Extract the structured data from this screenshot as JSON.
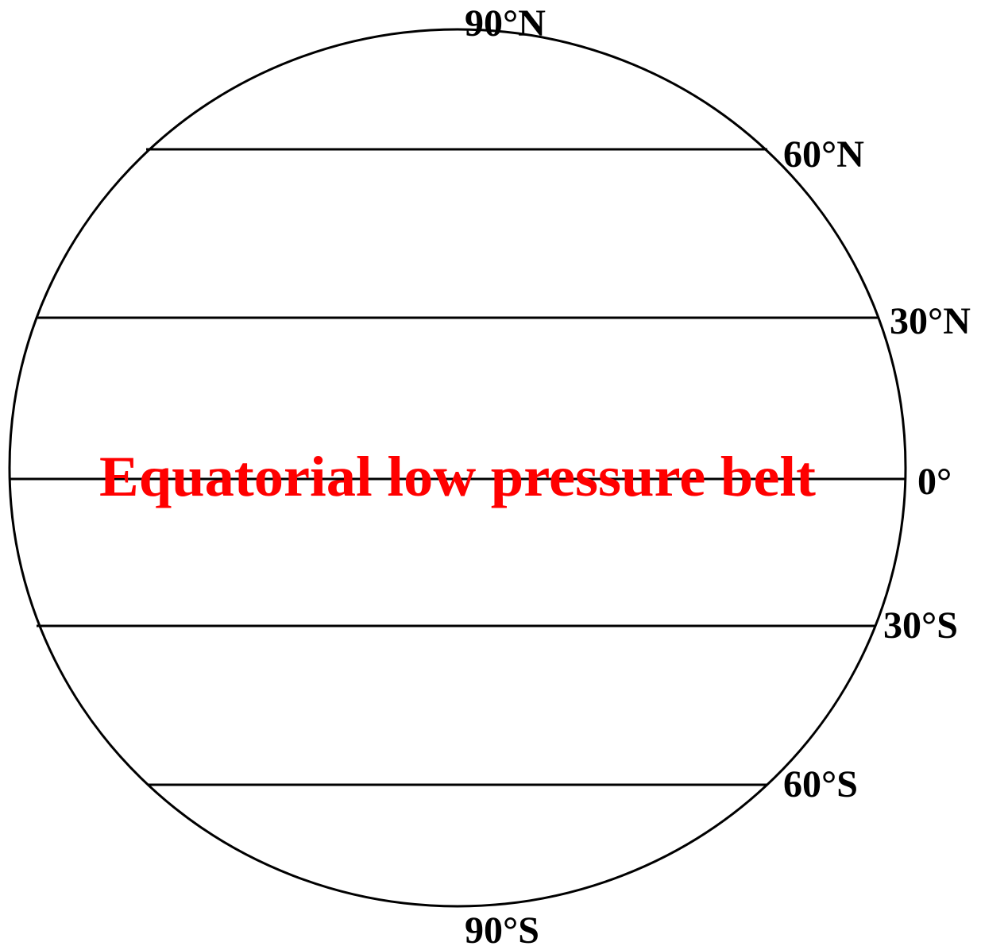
{
  "diagram": {
    "belt_label": "Equatorial low pressure belt",
    "latitudes": [
      "90°N",
      "60°N",
      "30°N",
      "0°",
      "30°S",
      "60°S",
      "90°S"
    ]
  }
}
